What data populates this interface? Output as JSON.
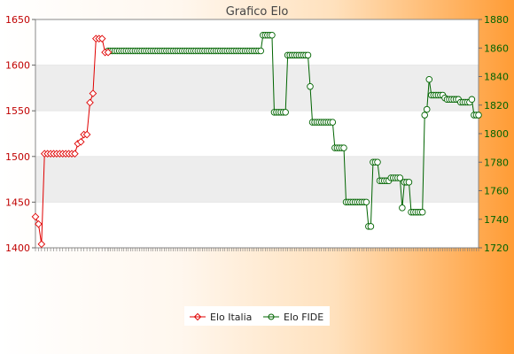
{
  "chart_data": {
    "type": "line",
    "title": "Grafico Elo",
    "left_axis": {
      "ylim": [
        1400,
        1650
      ],
      "ticks": [
        1400,
        1450,
        1500,
        1550,
        1600,
        1650
      ]
    },
    "right_axis": {
      "ylim": [
        1720,
        1880
      ],
      "ticks": [
        1720,
        1740,
        1760,
        1780,
        1800,
        1820,
        1840,
        1860,
        1880
      ]
    },
    "grid": "horizontal alternating bands",
    "legend_position": "bottom",
    "colors": {
      "italia": "#e00000",
      "fide": "#006400",
      "left_axis_text": "#c00000",
      "right_axis_text": "#006400",
      "band": "#ededed"
    },
    "series": [
      {
        "name": "Elo Italia",
        "axis": "left",
        "marker": "diamond",
        "values": [
          1434,
          1426,
          1404,
          1503,
          1503,
          1503,
          1503,
          1503,
          1503,
          1503,
          1503,
          1503,
          1503,
          1503,
          1514,
          1516,
          1524,
          1524,
          1559,
          1569,
          1629,
          1629,
          1629,
          1614,
          1614
        ]
      },
      {
        "name": "Elo FIDE",
        "axis": "right",
        "marker": "circle",
        "values": [
          1858,
          1858,
          1858,
          1858,
          1858,
          1858,
          1858,
          1858,
          1858,
          1858,
          1858,
          1858,
          1858,
          1858,
          1858,
          1858,
          1858,
          1858,
          1858,
          1858,
          1858,
          1858,
          1858,
          1858,
          1858,
          1858,
          1858,
          1858,
          1858,
          1858,
          1858,
          1858,
          1858,
          1858,
          1858,
          1858,
          1858,
          1858,
          1858,
          1858,
          1858,
          1858,
          1858,
          1858,
          1858,
          1858,
          1858,
          1858,
          1858,
          1858,
          1858,
          1858,
          1858,
          1858,
          1858,
          1858,
          1858,
          1858,
          1858,
          1858,
          1858,
          1858,
          1858,
          1858,
          1858,
          1858,
          1858,
          1858,
          1858,
          1869,
          1869,
          1869,
          1869,
          1869,
          1815,
          1815,
          1815,
          1815,
          1815,
          1815,
          1855,
          1855,
          1855,
          1855,
          1855,
          1855,
          1855,
          1855,
          1855,
          1855,
          1833,
          1808,
          1808,
          1808,
          1808,
          1808,
          1808,
          1808,
          1808,
          1808,
          1808,
          1790,
          1790,
          1790,
          1790,
          1790,
          1752,
          1752,
          1752,
          1752,
          1752,
          1752,
          1752,
          1752,
          1752,
          1752,
          1735,
          1735,
          1780,
          1780,
          1780,
          1767,
          1767,
          1767,
          1767,
          1767,
          1769,
          1769,
          1769,
          1769,
          1769,
          1748,
          1766,
          1766,
          1766,
          1745,
          1745,
          1745,
          1745,
          1745,
          1745,
          1813,
          1817,
          1838,
          1827,
          1827,
          1827,
          1827,
          1827,
          1827,
          1825,
          1824,
          1824,
          1824,
          1824,
          1824,
          1824,
          1822,
          1822,
          1822,
          1822,
          1822,
          1824,
          1813,
          1813,
          1813
        ]
      }
    ]
  }
}
